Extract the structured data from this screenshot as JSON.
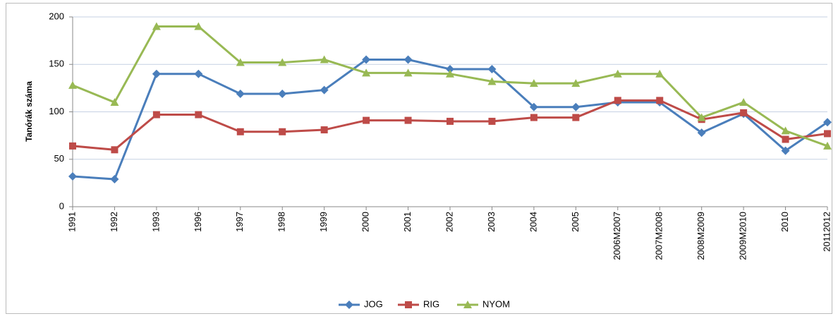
{
  "chart_data": {
    "type": "line",
    "y_label": "Tanórák száma",
    "categories": [
      "1991",
      "1992",
      "1993",
      "1996",
      "1997",
      "1998",
      "1999",
      "2000",
      "2001",
      "2002",
      "2003",
      "2004",
      "2005",
      "2006M2007",
      "2007M2008",
      "2008M2009",
      "2009M2010",
      "2010",
      "20112012"
    ],
    "series": [
      {
        "name": "JOG",
        "color": "#4a7ebb",
        "marker": "diamond",
        "values": [
          32,
          29,
          140,
          140,
          119,
          119,
          123,
          155,
          155,
          145,
          145,
          105,
          105,
          110,
          110,
          78,
          98,
          59,
          89
        ]
      },
      {
        "name": "RIG",
        "color": "#be4b48",
        "marker": "square",
        "values": [
          64,
          60,
          97,
          97,
          79,
          79,
          81,
          91,
          91,
          90,
          90,
          94,
          94,
          112,
          112,
          92,
          99,
          71,
          77
        ]
      },
      {
        "name": "NYOM",
        "color": "#98b954",
        "marker": "triangle",
        "values": [
          128,
          110,
          190,
          190,
          152,
          152,
          155,
          141,
          141,
          140,
          132,
          130,
          130,
          140,
          140,
          94,
          110,
          80,
          64
        ]
      }
    ],
    "ylim": [
      0,
      200
    ],
    "yticks": [
      0,
      50,
      100,
      150,
      200
    ],
    "grid": true,
    "legend": "bottom"
  }
}
